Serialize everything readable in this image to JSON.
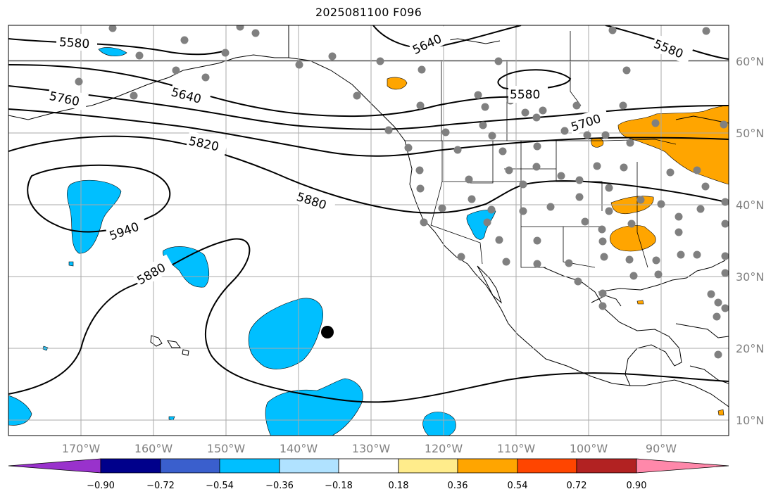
{
  "title": "2025081100 F096",
  "map": {
    "lon_labels": [
      "170°W",
      "160°W",
      "150°W",
      "140°W",
      "130°W",
      "120°W",
      "110°W",
      "100°W",
      "90°W"
    ],
    "lat_labels": [
      "60°N",
      "50°N",
      "40°N",
      "30°N",
      "20°N",
      "10°N"
    ],
    "contour_labels": [
      "5580",
      "5640",
      "5760",
      "5820",
      "5880",
      "5940",
      "5880",
      "5640",
      "5580",
      "5700",
      "5580"
    ],
    "contour_color": "#000000",
    "station_dot_color": "#808080",
    "marker_color": "#000000"
  },
  "colorbar": {
    "tick_labels": [
      "−0.90",
      "−0.72",
      "−0.54",
      "−0.36",
      "−0.18",
      "0.18",
      "0.36",
      "0.54",
      "0.72",
      "0.90"
    ],
    "colors": [
      "#9932cc",
      "#00008b",
      "#3a5fcd",
      "#00bfff",
      "#b0e2ff",
      "#ffffff",
      "#ffec8b",
      "#ffa500",
      "#ff4500",
      "#b22222",
      "#ff88aa"
    ]
  }
}
